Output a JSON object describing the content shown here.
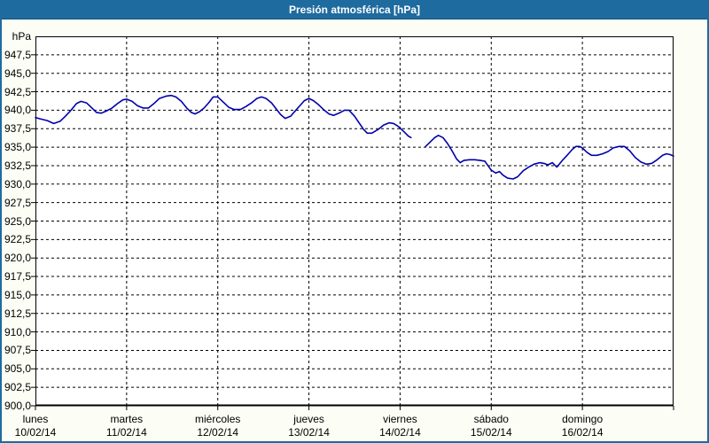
{
  "window": {
    "title": "Presión atmosférica [hPa]",
    "colors": {
      "titlebar_bg": "#1E6B9F",
      "titlebar_text": "#FFFFFF",
      "frame_border": "#1E6B9F",
      "window_bg": "#FCFEF5",
      "plot_bg": "#FFFFFF",
      "grid": "#000000",
      "series_line": "#0000AA"
    }
  },
  "chart_data": {
    "type": "line",
    "title": "Presión atmosférica [hPa]",
    "xlabel": "",
    "ylabel": "hPa",
    "ylim": [
      900,
      950
    ],
    "y_tick_step": 2.5,
    "y_tick_labels": [
      "947,5",
      "945,0",
      "942,5",
      "940,0",
      "937,5",
      "935,0",
      "932,5",
      "930,0",
      "927,5",
      "925,0",
      "922,5",
      "920,0",
      "917,5",
      "915,0",
      "912,5",
      "910,0",
      "907,5",
      "905,0",
      "902,5",
      "900,0"
    ],
    "x_range_days": [
      0,
      7
    ],
    "x_axis_days": [
      {
        "name": "lunes",
        "date": "10/02/14"
      },
      {
        "name": "martes",
        "date": "11/02/14"
      },
      {
        "name": "miércoles",
        "date": "12/02/14"
      },
      {
        "name": "jueves",
        "date": "13/02/14"
      },
      {
        "name": "viernes",
        "date": "14/02/14"
      },
      {
        "name": "sábado",
        "date": "15/02/14"
      },
      {
        "name": "domingo",
        "date": "16/02/14"
      }
    ],
    "grid": "dashed",
    "legend": "none",
    "note": "x in days since lunes 10/02/14 00:00; null y = data gap on viernes",
    "series": [
      {
        "name": "Presión atmosférica [hPa]",
        "color": "#0000AA",
        "points": [
          [
            0.0,
            939.0
          ],
          [
            0.06,
            938.8
          ],
          [
            0.13,
            938.6
          ],
          [
            0.2,
            938.2
          ],
          [
            0.27,
            938.5
          ],
          [
            0.33,
            939.2
          ],
          [
            0.39,
            940.0
          ],
          [
            0.45,
            940.9
          ],
          [
            0.5,
            941.2
          ],
          [
            0.56,
            941.0
          ],
          [
            0.62,
            940.3
          ],
          [
            0.67,
            939.7
          ],
          [
            0.72,
            939.6
          ],
          [
            0.78,
            939.9
          ],
          [
            0.84,
            940.3
          ],
          [
            0.9,
            940.9
          ],
          [
            0.96,
            941.4
          ],
          [
            1.0,
            941.5
          ],
          [
            1.06,
            941.2
          ],
          [
            1.12,
            940.6
          ],
          [
            1.18,
            940.3
          ],
          [
            1.24,
            940.3
          ],
          [
            1.3,
            940.9
          ],
          [
            1.36,
            941.6
          ],
          [
            1.43,
            941.9
          ],
          [
            1.49,
            942.0
          ],
          [
            1.54,
            941.8
          ],
          [
            1.6,
            941.2
          ],
          [
            1.66,
            940.3
          ],
          [
            1.71,
            939.7
          ],
          [
            1.75,
            939.5
          ],
          [
            1.8,
            939.8
          ],
          [
            1.85,
            940.3
          ],
          [
            1.9,
            941.0
          ],
          [
            1.95,
            941.8
          ],
          [
            2.0,
            941.8
          ],
          [
            2.06,
            941.1
          ],
          [
            2.12,
            940.4
          ],
          [
            2.18,
            940.1
          ],
          [
            2.25,
            940.1
          ],
          [
            2.31,
            940.5
          ],
          [
            2.37,
            941.0
          ],
          [
            2.43,
            941.6
          ],
          [
            2.48,
            941.8
          ],
          [
            2.53,
            941.6
          ],
          [
            2.59,
            941.0
          ],
          [
            2.64,
            940.2
          ],
          [
            2.69,
            939.4
          ],
          [
            2.74,
            938.9
          ],
          [
            2.8,
            939.2
          ],
          [
            2.85,
            939.9
          ],
          [
            2.9,
            940.6
          ],
          [
            2.95,
            941.3
          ],
          [
            3.0,
            941.6
          ],
          [
            3.05,
            941.3
          ],
          [
            3.1,
            940.8
          ],
          [
            3.16,
            940.1
          ],
          [
            3.22,
            939.5
          ],
          [
            3.27,
            939.3
          ],
          [
            3.33,
            939.6
          ],
          [
            3.39,
            940.0
          ],
          [
            3.44,
            940.0
          ],
          [
            3.5,
            939.2
          ],
          [
            3.55,
            938.3
          ],
          [
            3.6,
            937.4
          ],
          [
            3.64,
            936.9
          ],
          [
            3.69,
            936.9
          ],
          [
            3.76,
            937.4
          ],
          [
            3.82,
            938.0
          ],
          [
            3.88,
            938.3
          ],
          [
            3.93,
            938.2
          ],
          [
            3.97,
            937.9
          ],
          [
            4.0,
            937.6
          ],
          [
            4.05,
            937.0
          ],
          [
            4.09,
            936.5
          ],
          [
            4.12,
            936.3
          ],
          [
            4.17,
            null
          ],
          [
            4.28,
            935.1
          ],
          [
            4.33,
            935.7
          ],
          [
            4.38,
            936.3
          ],
          [
            4.42,
            936.6
          ],
          [
            4.47,
            936.3
          ],
          [
            4.52,
            935.5
          ],
          [
            4.57,
            934.5
          ],
          [
            4.62,
            933.4
          ],
          [
            4.66,
            932.9
          ],
          [
            4.7,
            933.2
          ],
          [
            4.76,
            933.3
          ],
          [
            4.82,
            933.3
          ],
          [
            4.88,
            933.2
          ],
          [
            4.93,
            933.1
          ],
          [
            4.97,
            932.4
          ],
          [
            5.0,
            931.9
          ],
          [
            5.05,
            931.5
          ],
          [
            5.09,
            931.7
          ],
          [
            5.13,
            931.2
          ],
          [
            5.18,
            930.8
          ],
          [
            5.24,
            930.7
          ],
          [
            5.29,
            931.0
          ],
          [
            5.35,
            931.8
          ],
          [
            5.41,
            932.3
          ],
          [
            5.47,
            932.7
          ],
          [
            5.53,
            932.9
          ],
          [
            5.58,
            932.8
          ],
          [
            5.62,
            932.6
          ],
          [
            5.67,
            932.9
          ],
          [
            5.72,
            932.3
          ],
          [
            5.78,
            933.2
          ],
          [
            5.84,
            934.0
          ],
          [
            5.89,
            934.7
          ],
          [
            5.93,
            935.1
          ],
          [
            5.97,
            935.1
          ],
          [
            6.0,
            934.9
          ],
          [
            6.05,
            934.3
          ],
          [
            6.1,
            933.9
          ],
          [
            6.16,
            933.9
          ],
          [
            6.22,
            934.1
          ],
          [
            6.28,
            934.4
          ],
          [
            6.34,
            934.9
          ],
          [
            6.4,
            935.1
          ],
          [
            6.46,
            935.1
          ],
          [
            6.52,
            934.5
          ],
          [
            6.58,
            933.6
          ],
          [
            6.64,
            933.0
          ],
          [
            6.7,
            932.7
          ],
          [
            6.76,
            932.8
          ],
          [
            6.82,
            933.3
          ],
          [
            6.88,
            933.9
          ],
          [
            6.92,
            934.1
          ],
          [
            6.96,
            934.0
          ],
          [
            7.0,
            933.8
          ]
        ]
      }
    ]
  }
}
